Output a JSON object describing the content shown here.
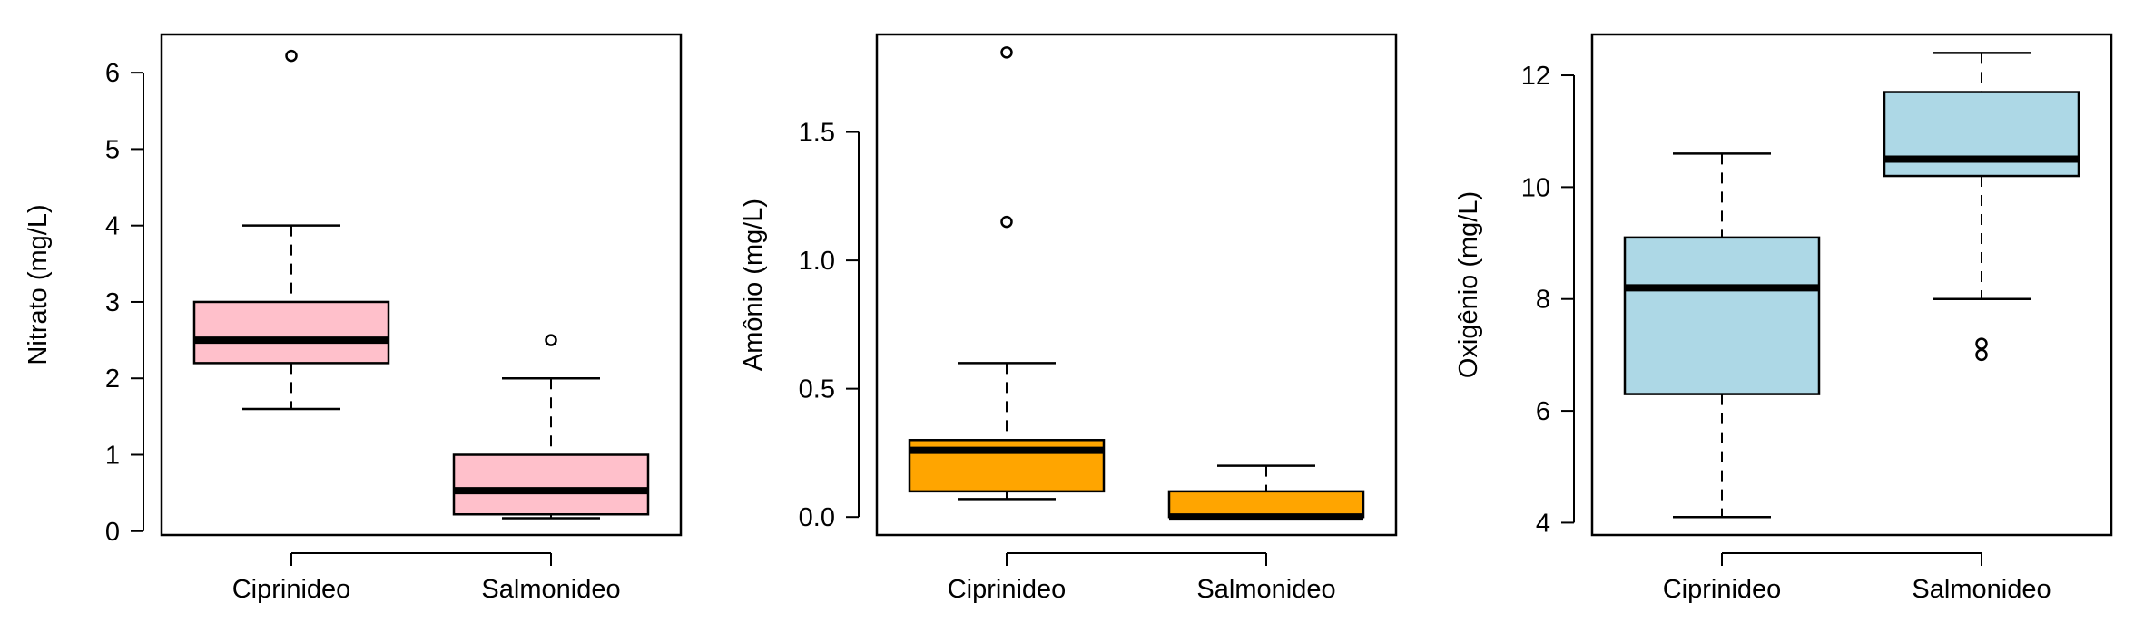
{
  "chart_data": [
    {
      "type": "box",
      "ylabel": "Nitrato (mg/L)",
      "categories": [
        "Ciprinideo",
        "Salmonideo"
      ],
      "ylim": [
        -0.05,
        6.5
      ],
      "yticks": [
        0,
        1,
        2,
        3,
        4,
        5,
        6
      ],
      "ytick_labels": [
        "0",
        "1",
        "2",
        "3",
        "4",
        "5",
        "6"
      ],
      "fill": "#ffc0cb",
      "boxes": [
        {
          "name": "Ciprinideo",
          "whisker_low": 1.6,
          "q1": 2.2,
          "median": 2.5,
          "q3": 3.0,
          "whisker_high": 4.0,
          "outliers": [
            6.22
          ]
        },
        {
          "name": "Salmonideo",
          "whisker_low": 0.17,
          "q1": 0.22,
          "median": 0.53,
          "q3": 1.0,
          "whisker_high": 2.0,
          "outliers": [
            2.5
          ]
        }
      ]
    },
    {
      "type": "box",
      "ylabel": "Amônio (mg/L)",
      "categories": [
        "Ciprinideo",
        "Salmonideo"
      ],
      "ylim": [
        -0.07,
        1.88
      ],
      "yticks": [
        0.0,
        0.5,
        1.0,
        1.5
      ],
      "ytick_labels": [
        "0.0",
        "0.5",
        "1.0",
        "1.5"
      ],
      "fill": "#ffa500",
      "boxes": [
        {
          "name": "Ciprinideo",
          "whisker_low": 0.07,
          "q1": 0.1,
          "median": 0.26,
          "q3": 0.3,
          "whisker_high": 0.6,
          "outliers": [
            1.15,
            1.81
          ]
        },
        {
          "name": "Salmonideo",
          "whisker_low": 0.0,
          "q1": 0.0,
          "median": 0.0,
          "q3": 0.1,
          "whisker_high": 0.2,
          "outliers": []
        }
      ]
    },
    {
      "type": "box",
      "ylabel": "Oxigênio (mg/L)",
      "categories": [
        "Ciprinideo",
        "Salmonideo"
      ],
      "ylim": [
        3.78,
        12.73
      ],
      "yticks": [
        4,
        6,
        8,
        10,
        12
      ],
      "ytick_labels": [
        "4",
        "6",
        "8",
        "10",
        "12"
      ],
      "fill": "#add8e6",
      "boxes": [
        {
          "name": "Ciprinideo",
          "whisker_low": 4.1,
          "q1": 6.3,
          "median": 8.2,
          "q3": 9.1,
          "whisker_high": 10.6,
          "outliers": []
        },
        {
          "name": "Salmonideo",
          "whisker_low": 8.0,
          "q1": 10.2,
          "median": 10.5,
          "q3": 11.7,
          "whisker_high": 12.4,
          "outliers": [
            7.0,
            7.2
          ]
        }
      ]
    }
  ]
}
